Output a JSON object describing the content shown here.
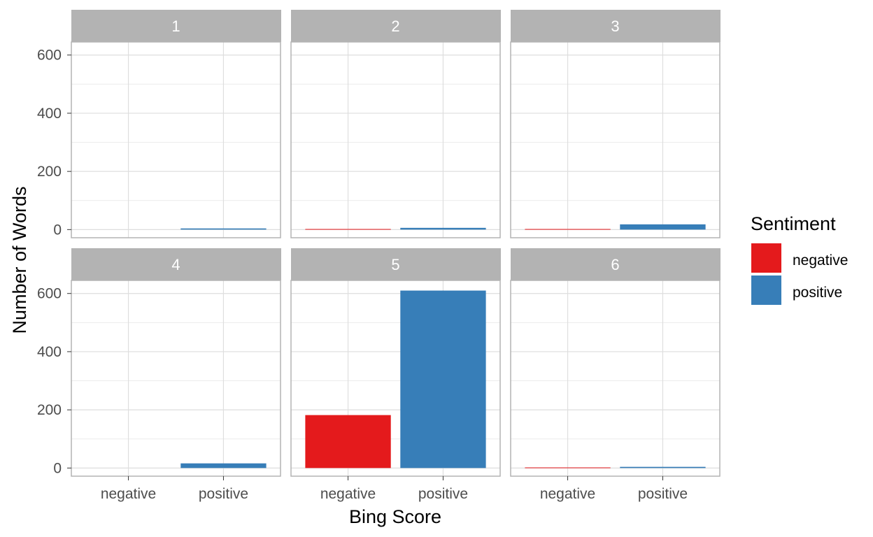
{
  "chart_data": {
    "type": "bar",
    "facet_by": "panel",
    "categories": [
      "negative",
      "positive"
    ],
    "panels": [
      {
        "label": "1",
        "values": [
          0,
          4
        ]
      },
      {
        "label": "2",
        "values": [
          2,
          6
        ]
      },
      {
        "label": "3",
        "values": [
          2,
          18
        ]
      },
      {
        "label": "4",
        "values": [
          0,
          16
        ]
      },
      {
        "label": "5",
        "values": [
          182,
          610
        ]
      },
      {
        "label": "6",
        "values": [
          2,
          4
        ]
      }
    ],
    "ylim": [
      -28,
      645
    ],
    "y_ticks": [
      0,
      200,
      400,
      600
    ],
    "xlabel": "Bing Score",
    "ylabel": "Number of Words",
    "legend": {
      "title": "Sentiment",
      "position": "right",
      "entries": [
        {
          "label": "negative",
          "color": "#e41a1c"
        },
        {
          "label": "positive",
          "color": "#377eb8"
        }
      ]
    },
    "grid": true,
    "colors": {
      "negative": "#e41a1c",
      "positive": "#377eb8",
      "strip": "#b3b3b3",
      "grid": "#dedede",
      "border": "#b3b3b3"
    }
  }
}
